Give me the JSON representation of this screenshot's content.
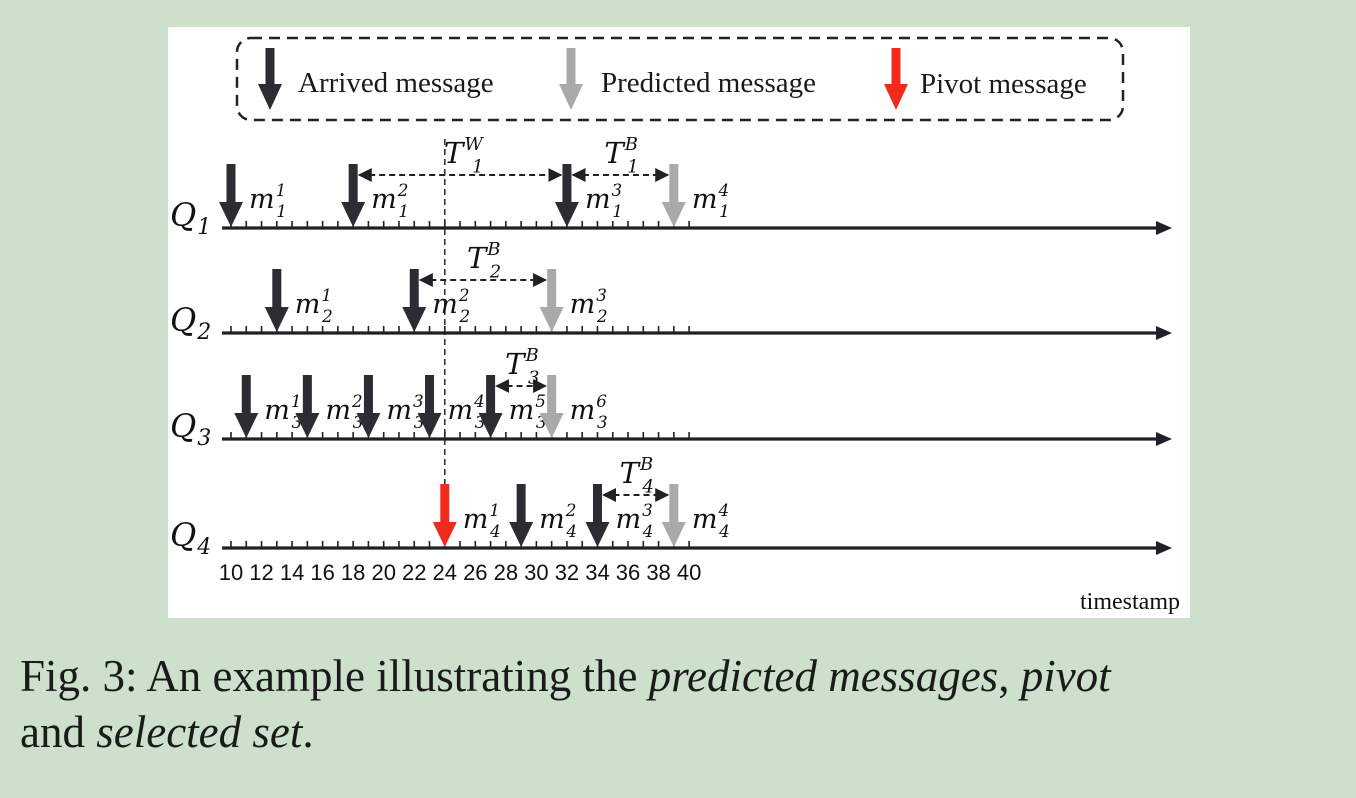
{
  "legend": {
    "arrived": "Arrived message",
    "predicted": "Predicted message",
    "pivot": "Pivot message"
  },
  "colors": {
    "arrived": "#2b2d33",
    "predicted": "#a9a9a9",
    "pivot": "#f02b1e",
    "axis": "#1f2126"
  },
  "axis": {
    "ticks": [
      10,
      12,
      14,
      16,
      18,
      20,
      22,
      24,
      26,
      28,
      30,
      32,
      34,
      36,
      38,
      40
    ],
    "min": 10,
    "max": 40,
    "unit_label": "timestamp"
  },
  "pivot_time": 24,
  "queues": [
    {
      "name": "Q",
      "sub": "1",
      "messages": [
        {
          "t": 10,
          "type": "arrived",
          "sub": "1",
          "sup": "1"
        },
        {
          "t": 18,
          "type": "arrived",
          "sub": "1",
          "sup": "2"
        },
        {
          "t": 32,
          "type": "arrived",
          "sub": "1",
          "sup": "3"
        },
        {
          "t": 39,
          "type": "predicted",
          "sub": "1",
          "sup": "4"
        }
      ],
      "intervals": [
        {
          "from": 18,
          "to": 32,
          "base": "T",
          "sub": "1",
          "sup": "W"
        },
        {
          "from": 32,
          "to": 39,
          "base": "T",
          "sub": "1",
          "sup": "B"
        }
      ]
    },
    {
      "name": "Q",
      "sub": "2",
      "messages": [
        {
          "t": 13,
          "type": "arrived",
          "sub": "2",
          "sup": "1"
        },
        {
          "t": 22,
          "type": "arrived",
          "sub": "2",
          "sup": "2"
        },
        {
          "t": 31,
          "type": "predicted",
          "sub": "2",
          "sup": "3"
        }
      ],
      "intervals": [
        {
          "from": 22,
          "to": 31,
          "base": "T",
          "sub": "2",
          "sup": "B"
        }
      ]
    },
    {
      "name": "Q",
      "sub": "3",
      "messages": [
        {
          "t": 11,
          "type": "arrived",
          "sub": "3",
          "sup": "1"
        },
        {
          "t": 15,
          "type": "arrived",
          "sub": "3",
          "sup": "2"
        },
        {
          "t": 19,
          "type": "arrived",
          "sub": "3",
          "sup": "3"
        },
        {
          "t": 23,
          "type": "arrived",
          "sub": "3",
          "sup": "4"
        },
        {
          "t": 27,
          "type": "arrived",
          "sub": "3",
          "sup": "5"
        },
        {
          "t": 31,
          "type": "predicted",
          "sub": "3",
          "sup": "6"
        }
      ],
      "intervals": [
        {
          "from": 27,
          "to": 31,
          "base": "T",
          "sub": "3",
          "sup": "B"
        }
      ]
    },
    {
      "name": "Q",
      "sub": "4",
      "messages": [
        {
          "t": 24,
          "type": "pivot",
          "sub": "4",
          "sup": "1"
        },
        {
          "t": 29,
          "type": "arrived",
          "sub": "4",
          "sup": "2"
        },
        {
          "t": 34,
          "type": "arrived",
          "sub": "4",
          "sup": "3"
        },
        {
          "t": 39,
          "type": "predicted",
          "sub": "4",
          "sup": "4"
        }
      ],
      "intervals": [
        {
          "from": 34,
          "to": 39,
          "base": "T",
          "sub": "4",
          "sup": "B"
        }
      ]
    }
  ],
  "caption": {
    "prefix": "Fig. 3: An example illustrating the ",
    "term1": "predicted messages",
    "sep1": ", ",
    "term2": "pivot",
    "line2_prefix": "and ",
    "term3": "selected set",
    "suffix": "."
  }
}
